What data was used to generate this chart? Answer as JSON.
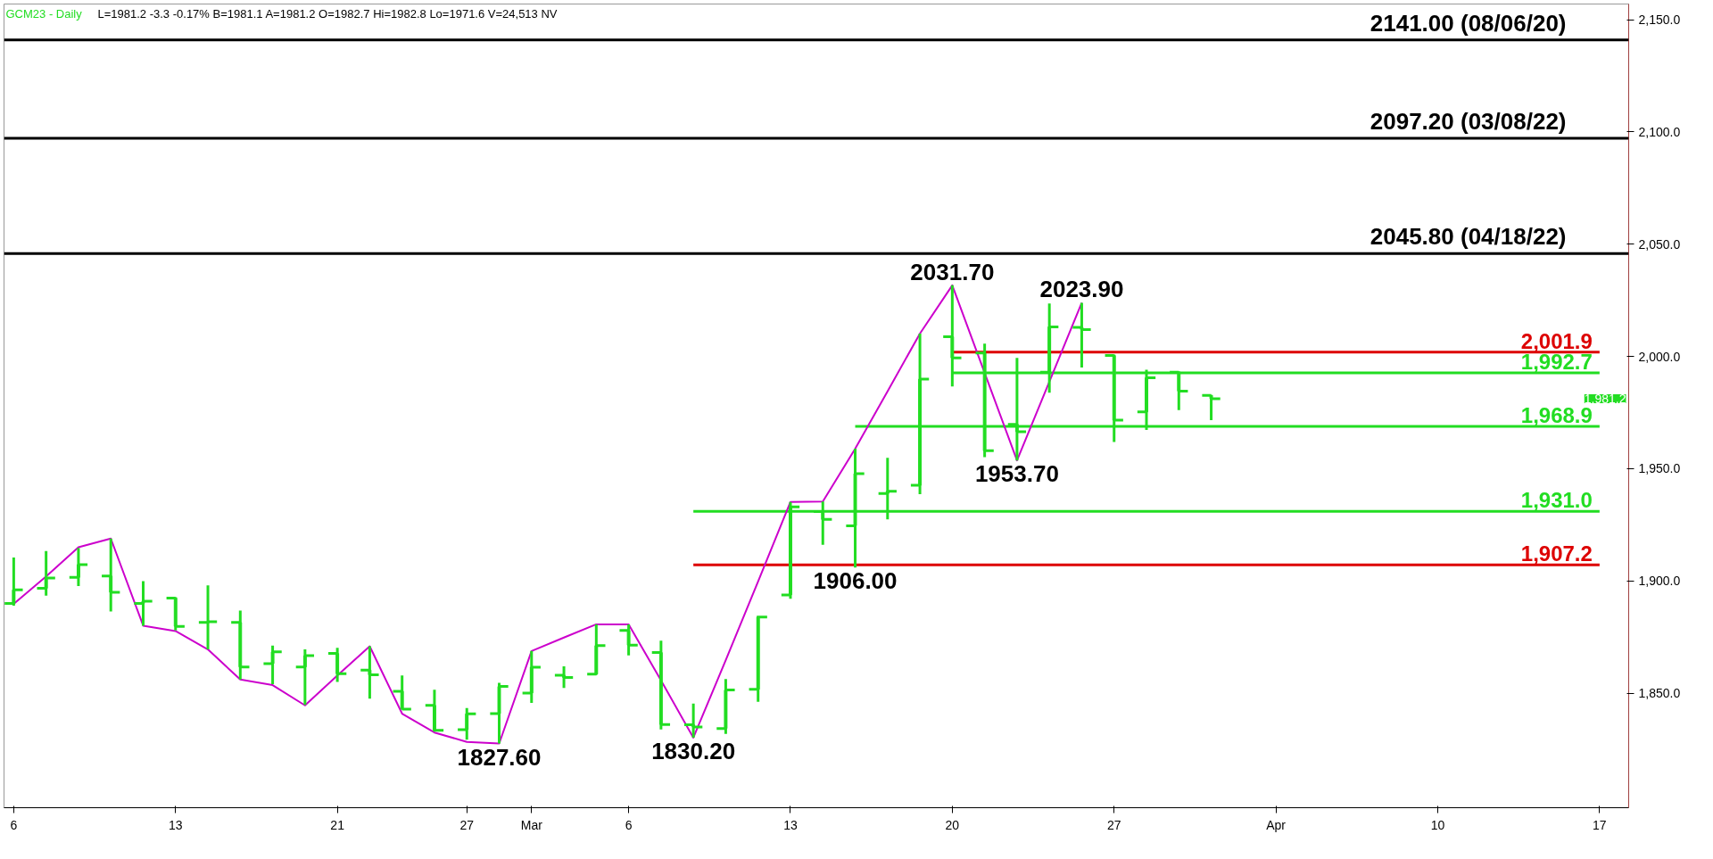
{
  "chart_data": {
    "type": "candlestick",
    "title": "GCM23 - Daily",
    "subtitle": "L=1981.2 -3.3 -0.17% B=1981.1 A=1981.2 O=1982.7 Hi=1982.8 Lo=1971.6 V=24,513 NV",
    "color": "#22dd22",
    "categories": [
      "6",
      null,
      null,
      null,
      null,
      "13",
      null,
      null,
      null,
      null,
      "21",
      null,
      null,
      null,
      "27",
      null,
      "Mar",
      null,
      null,
      "6",
      null,
      null,
      null,
      null,
      "13",
      null,
      null,
      null,
      null,
      "20",
      null,
      null,
      null,
      null,
      "27",
      null,
      null,
      null,
      null,
      "Apr",
      null,
      null,
      null,
      null,
      "10",
      null,
      null,
      null,
      null,
      "17"
    ],
    "ohlc": [
      [
        1890,
        1910.5,
        1889,
        1896
      ],
      [
        1896.7,
        1913.3,
        1893.5,
        1901.3
      ],
      [
        1901.6,
        1914.7,
        1897.7,
        1907.3
      ],
      [
        1902.2,
        1918.9,
        1886.4,
        1895
      ],
      [
        1890,
        1899.9,
        1880.1,
        1891
      ],
      [
        1892.4,
        1892.8,
        1878,
        1879.8
      ],
      [
        1881.5,
        1898,
        1869.5,
        1881.8
      ],
      [
        1881.5,
        1886.8,
        1856.1,
        1861.7
      ],
      [
        1863.2,
        1871.2,
        1854,
        1868.4
      ],
      [
        1861.7,
        1869.5,
        1844.8,
        1866.7
      ],
      [
        1867.7,
        1870.2,
        1855,
        1858.7
      ],
      [
        1860.3,
        1870.9,
        1847.6,
        1858.2
      ],
      [
        1850.9,
        1857.9,
        1842.7,
        1842.9
      ],
      [
        1844.6,
        1851.5,
        1832.9,
        1833.5
      ],
      [
        1833.8,
        1843.4,
        1829.3,
        1840.8
      ],
      [
        1840.9,
        1854.6,
        1827.6,
        1853
      ],
      [
        1850.1,
        1868.8,
        1845.7,
        1861.6
      ],
      [
        1858,
        1862,
        1852.3,
        1857
      ],
      [
        1858.5,
        1880.7,
        1858.3,
        1871.2
      ],
      [
        1878,
        1880.7,
        1866.8,
        1871.4
      ],
      [
        1868.1,
        1873.4,
        1833.9,
        1836.1
      ],
      [
        1836,
        1845.4,
        1830.2,
        1835
      ],
      [
        1834.3,
        1856.3,
        1831.9,
        1851.4
      ],
      [
        1851.7,
        1884.5,
        1846.2,
        1883.9
      ],
      [
        1893.8,
        1935.2,
        1892.1,
        1933
      ],
      [
        1930.9,
        1935.4,
        1916.1,
        1927.4
      ],
      [
        1924.6,
        1958.9,
        1906,
        1947.8
      ],
      [
        1939,
        1954.9,
        1927.4,
        1940
      ],
      [
        1942.6,
        2010.2,
        1938.7,
        1989.9
      ],
      [
        2008.8,
        2031.7,
        1986.6,
        1999.4
      ],
      [
        2001.5,
        2005.7,
        1955.2,
        1958
      ],
      [
        1969.8,
        1999.4,
        1953.7,
        1966.5
      ],
      [
        1993,
        2023.6,
        1983.9,
        2013.2
      ],
      [
        2013,
        2023.9,
        1995.1,
        2012
      ],
      [
        2000.4,
        2000.8,
        1961.9,
        1971.6
      ],
      [
        1975.3,
        1994.1,
        1967.3,
        1990.5
      ],
      [
        1993,
        1993.3,
        1976.1,
        1984.6
      ],
      [
        1982.7,
        1982.8,
        1971.6,
        1981.2
      ],
      null,
      null,
      null,
      null,
      null,
      null,
      null,
      null,
      null,
      null,
      null,
      null
    ],
    "series": [
      {
        "type": "line",
        "color": "#cc00cc",
        "values": [
          1889.8,
          1902,
          1915,
          1918.9,
          1880.1,
          1877.7,
          1869.5,
          1856.1,
          1853.6,
          1844.6,
          1857.9,
          1870.9,
          1840.9,
          1832.5,
          1828.3,
          1827.6,
          1868.8,
          1874.8,
          1880.7,
          1880.7,
          1855.7,
          1830.2,
          1864.7,
          1899.8,
          1935.2,
          1935.4,
          1958.9,
          1984.5,
          2010.2,
          2031.7,
          null,
          1953.7,
          1988.8,
          2023.9,
          null,
          null,
          null,
          null,
          null,
          null,
          null,
          null,
          null,
          null,
          null,
          null,
          null,
          null,
          null,
          null
        ]
      },
      {
        "type": "line",
        "name": "2,001.9",
        "color": "#dd0000",
        "values": [
          null,
          null,
          null,
          null,
          null,
          null,
          null,
          null,
          null,
          null,
          null,
          null,
          null,
          null,
          null,
          null,
          null,
          null,
          null,
          null,
          null,
          null,
          null,
          null,
          null,
          null,
          null,
          null,
          null,
          2001.9,
          2001.9,
          2001.9,
          2001.9,
          2001.9,
          2001.9,
          2001.9,
          2001.9,
          2001.9,
          2001.9,
          2001.9,
          2001.9,
          2001.9,
          2001.9,
          2001.9,
          2001.9,
          2001.9,
          2001.9,
          2001.9,
          2001.9,
          2001.9
        ]
      },
      {
        "type": "line",
        "name": "1,992.7",
        "color": "#22dd22",
        "values": [
          null,
          null,
          null,
          null,
          null,
          null,
          null,
          null,
          null,
          null,
          null,
          null,
          null,
          null,
          null,
          null,
          null,
          null,
          null,
          null,
          null,
          null,
          null,
          null,
          null,
          null,
          null,
          null,
          null,
          1992.7,
          1992.7,
          1992.7,
          1992.7,
          1992.7,
          1992.7,
          1992.7,
          1992.7,
          1992.7,
          1992.7,
          1992.7,
          1992.7,
          1992.7,
          1992.7,
          1992.7,
          1992.7,
          1992.7,
          1992.7,
          1992.7,
          1992.7,
          1992.7
        ]
      },
      {
        "type": "line",
        "name": "1,968.9",
        "color": "#22dd22",
        "values": [
          null,
          null,
          null,
          null,
          null,
          null,
          null,
          null,
          null,
          null,
          null,
          null,
          null,
          null,
          null,
          null,
          null,
          null,
          null,
          null,
          null,
          null,
          null,
          null,
          null,
          null,
          1968.9,
          1968.9,
          1968.9,
          1968.9,
          1968.9,
          1968.9,
          1968.9,
          1968.9,
          1968.9,
          1968.9,
          1968.9,
          1968.9,
          1968.9,
          1968.9,
          1968.9,
          1968.9,
          1968.9,
          1968.9,
          1968.9,
          1968.9,
          1968.9,
          1968.9,
          1968.9,
          1968.9
        ]
      },
      {
        "type": "line",
        "name": "1,931.0",
        "color": "#22dd22",
        "values": [
          null,
          null,
          null,
          null,
          null,
          null,
          null,
          null,
          null,
          null,
          null,
          null,
          null,
          null,
          null,
          null,
          null,
          null,
          null,
          null,
          null,
          1931.0,
          1931.0,
          1931.0,
          1931.0,
          1931.0,
          1931.0,
          1931.0,
          1931.0,
          1931.0,
          1931.0,
          1931.0,
          1931.0,
          1931.0,
          1931.0,
          1931.0,
          1931.0,
          1931.0,
          1931.0,
          1931.0,
          1931.0,
          1931.0,
          1931.0,
          1931.0,
          1931.0,
          1931.0,
          1931.0,
          1931.0,
          1931.0,
          1931.0
        ]
      },
      {
        "type": "line",
        "name": "1,907.2",
        "color": "#dd0000",
        "values": [
          null,
          null,
          null,
          null,
          null,
          null,
          null,
          null,
          null,
          null,
          null,
          null,
          null,
          null,
          null,
          null,
          null,
          null,
          null,
          null,
          null,
          1907.2,
          1907.2,
          1907.2,
          1907.2,
          1907.2,
          1907.2,
          1907.2,
          1907.2,
          1907.2,
          1907.2,
          1907.2,
          1907.2,
          1907.2,
          1907.2,
          1907.2,
          1907.2,
          1907.2,
          1907.2,
          1907.2,
          1907.2,
          1907.2,
          1907.2,
          1907.2,
          1907.2,
          1907.2,
          1907.2,
          1907.2,
          1907.2,
          1907.2
        ]
      }
    ],
    "ref_lines": [
      {
        "axis": "y",
        "value": 2141.0,
        "label": "2141.00 (08/06/20)",
        "color": "#000000"
      },
      {
        "axis": "y",
        "value": 2097.2,
        "label": "2097.20 (03/08/22)",
        "color": "#000000"
      },
      {
        "axis": "y",
        "value": 2045.8,
        "label": "2045.80 (04/18/22)",
        "color": "#000000"
      }
    ],
    "annotations": [
      {
        "text": "2031.70",
        "x": "20",
        "y": 2031.7
      },
      {
        "text": "2023.90",
        "y": 2023.9
      },
      {
        "text": "1953.70",
        "y": 1953.7
      },
      {
        "text": "1906.00",
        "y": 1906.0
      },
      {
        "text": "1827.60",
        "y": 1827.6
      },
      {
        "text": "1830.20",
        "y": 1830.2
      },
      "1,981.2"
    ],
    "ylim": [
      1799,
      2157
    ],
    "yticks": [
      {
        "value": 1850,
        "label": "1,850.0"
      },
      {
        "value": 1900,
        "label": "1,900.0"
      },
      {
        "value": 1950,
        "label": "1,950.0"
      },
      {
        "value": 2000,
        "label": "2,000.0"
      },
      {
        "value": 2050,
        "label": "2,050.0"
      },
      {
        "value": 2100,
        "label": "2,100.0"
      },
      {
        "value": 2150,
        "label": "2,150.0"
      }
    ],
    "grid": false
  }
}
